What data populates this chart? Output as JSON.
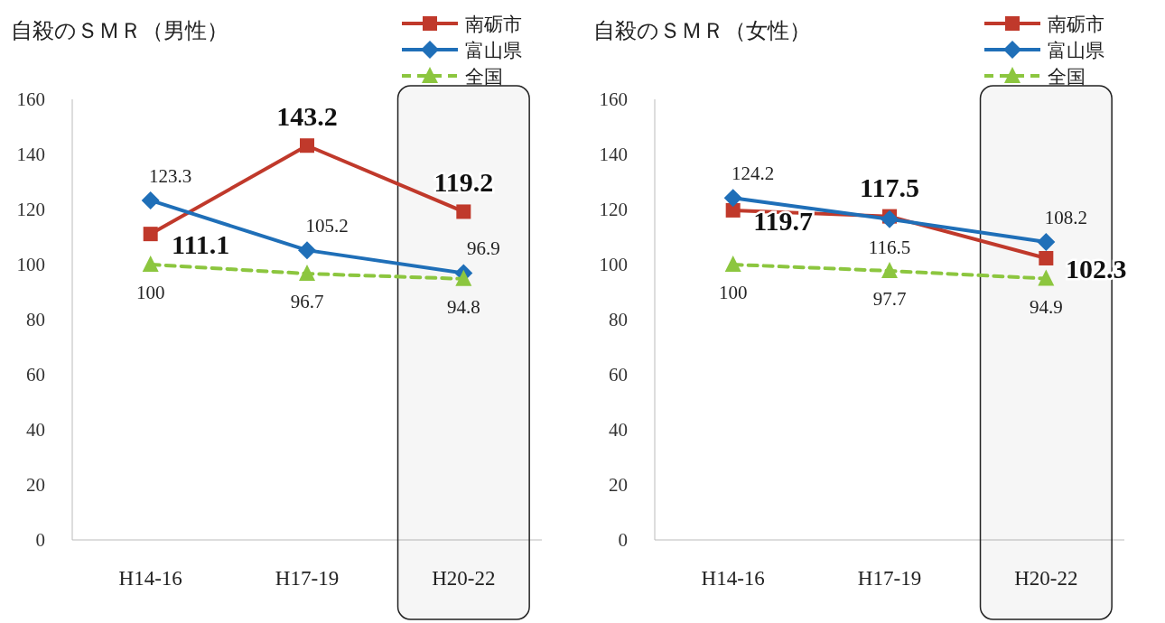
{
  "chart_data": [
    {
      "type": "line",
      "title": "自殺のＳＭＲ（男性）",
      "categories": [
        "H14-16",
        "H17-19",
        "H20-22"
      ],
      "ylim": [
        0,
        160
      ],
      "yticks": [
        0,
        20,
        40,
        60,
        80,
        100,
        120,
        140,
        160
      ],
      "grid": false,
      "legend": "top right",
      "data_labels": true,
      "bands": [
        {
          "axis": "x",
          "from": "H20-22",
          "to": "H20-22",
          "color": "#222222"
        }
      ],
      "series": [
        {
          "name": "南砺市",
          "color": "#c0392b",
          "values": [
            111.1,
            143.2,
            119.2
          ],
          "marker": "square",
          "line_style": "solid"
        },
        {
          "name": "富山県",
          "color": "#1f6fb8",
          "values": [
            123.3,
            105.2,
            96.9
          ],
          "marker": "diamond",
          "line_style": "solid"
        },
        {
          "name": "全国",
          "color": "#8cc63f",
          "values": [
            100,
            96.7,
            94.8
          ],
          "marker": "triangle",
          "line_style": "dashed"
        }
      ]
    },
    {
      "type": "line",
      "title": "自殺のＳＭＲ（女性）",
      "categories": [
        "H14-16",
        "H17-19",
        "H20-22"
      ],
      "ylim": [
        0,
        160
      ],
      "yticks": [
        0,
        20,
        40,
        60,
        80,
        100,
        120,
        140,
        160
      ],
      "grid": false,
      "legend": "top right",
      "data_labels": true,
      "bands": [
        {
          "axis": "x",
          "from": "H20-22",
          "to": "H20-22",
          "color": "#222222"
        }
      ],
      "series": [
        {
          "name": "南砺市",
          "color": "#c0392b",
          "values": [
            119.7,
            117.5,
            102.3
          ],
          "marker": "square",
          "line_style": "solid"
        },
        {
          "name": "富山県",
          "color": "#1f6fb8",
          "values": [
            124.2,
            116.5,
            108.2
          ],
          "marker": "diamond",
          "line_style": "solid"
        },
        {
          "name": "全国",
          "color": "#8cc63f",
          "values": [
            100,
            97.7,
            94.9
          ],
          "marker": "triangle",
          "line_style": "dashed"
        }
      ]
    }
  ]
}
